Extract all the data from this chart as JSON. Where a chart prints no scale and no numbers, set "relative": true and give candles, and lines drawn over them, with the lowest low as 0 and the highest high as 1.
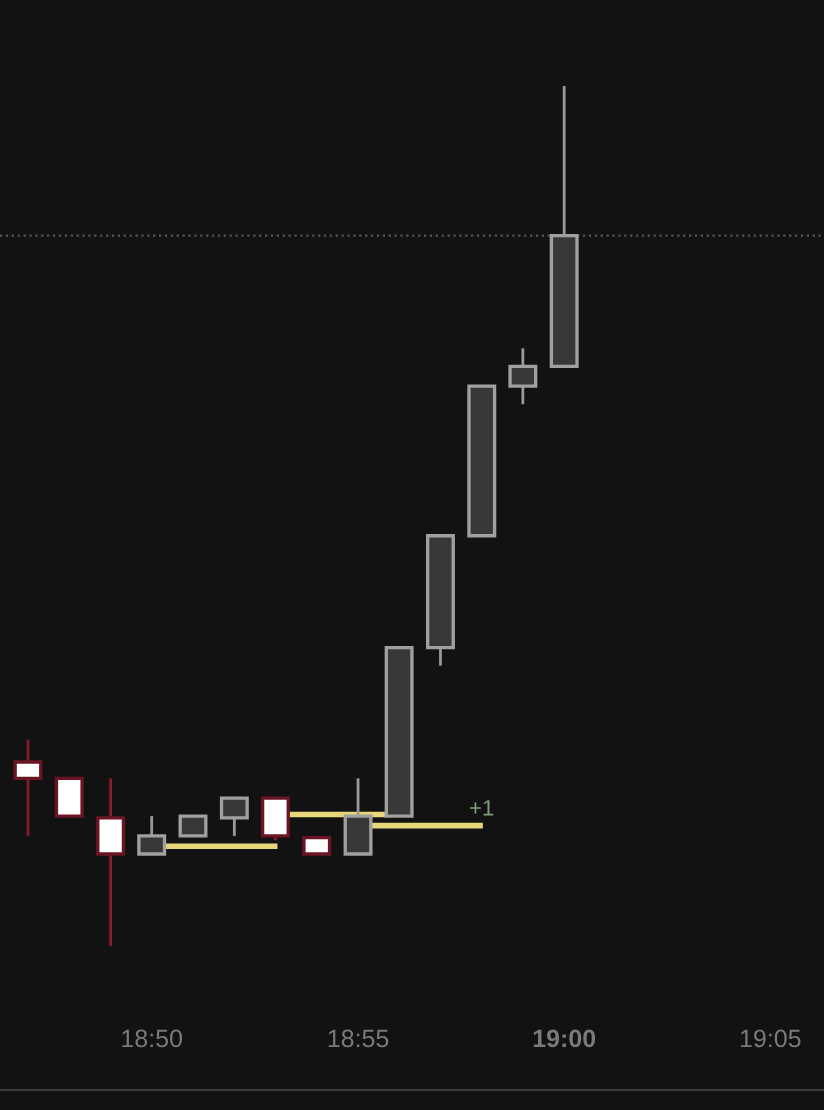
{
  "chart_data": {
    "type": "candlestick",
    "relative": true,
    "x": [
      18.7833,
      18.8,
      18.8167,
      18.8333,
      18.85,
      18.8667,
      18.8833,
      18.9,
      18.9167,
      18.9333,
      18.95,
      18.9667,
      18.9833,
      19.0
    ],
    "ohlc": [
      [
        0.214,
        0.24,
        0.128,
        0.195
      ],
      [
        0.195,
        0.195,
        0.151,
        0.151
      ],
      [
        0.149,
        0.195,
        0.0,
        0.107
      ],
      [
        0.107,
        0.151,
        0.107,
        0.128
      ],
      [
        0.128,
        0.151,
        0.128,
        0.151
      ],
      [
        0.149,
        0.172,
        0.128,
        0.172
      ],
      [
        0.172,
        0.172,
        0.123,
        0.128
      ],
      [
        0.126,
        0.126,
        0.107,
        0.107
      ],
      [
        0.107,
        0.195,
        0.107,
        0.151
      ],
      [
        0.151,
        0.347,
        0.151,
        0.347
      ],
      [
        0.347,
        0.477,
        0.326,
        0.477
      ],
      [
        0.477,
        0.651,
        0.477,
        0.651
      ],
      [
        0.651,
        0.695,
        0.63,
        0.674
      ],
      [
        0.674,
        1.0,
        0.674,
        0.826
      ]
    ],
    "series": [
      {
        "type": "line",
        "color": "#e8d77a",
        "x": [
          18.839,
          18.883
        ],
        "values": [
          0.116,
          0.116
        ]
      },
      {
        "type": "line",
        "color": "#e8d77a",
        "x": [
          18.89,
          18.928
        ],
        "values": [
          0.153,
          0.153
        ]
      },
      {
        "type": "line",
        "color": "#e8d77a",
        "x": [
          18.923,
          18.966
        ],
        "values": [
          0.14,
          0.14
        ]
      }
    ],
    "annotations": [
      {
        "text": "+1",
        "x": 18.966,
        "y": 0.14
      }
    ],
    "ref_lines": [
      {
        "axis": "y",
        "value": 0.826,
        "color": "#555555",
        "line_style": "dotted"
      }
    ],
    "xlim": [
      18.772,
      19.105
    ],
    "xticks": [
      {
        "value": 18.8333,
        "label": "18:50"
      },
      {
        "value": 18.9167,
        "label": "18:55"
      },
      {
        "value": 19.0,
        "label": "19:00"
      },
      {
        "value": 19.0833,
        "label": "19:05"
      }
    ],
    "tick_labels": "x",
    "grid": false,
    "legend": false
  }
}
